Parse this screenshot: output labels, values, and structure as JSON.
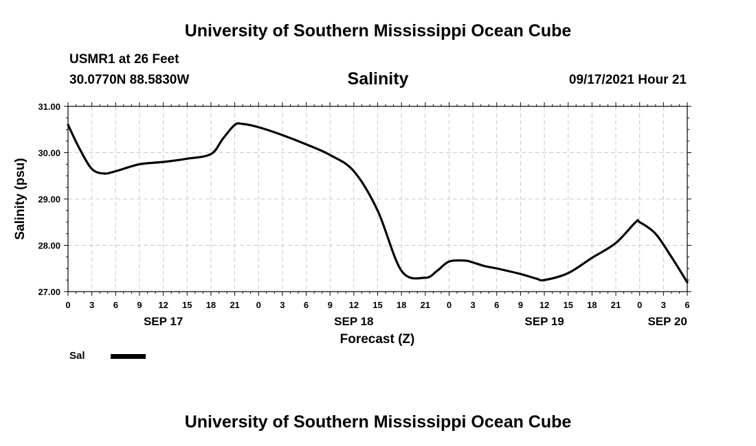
{
  "header": {
    "top_title": "University of Southern Mississippi Ocean Cube",
    "station": "USMR1 at 26 Feet",
    "coords": "30.0770N  88.5830W",
    "variable": "Salinity",
    "datetime": "09/17/2021 Hour 21",
    "bottom_title": "University of Southern Mississippi Ocean Cube"
  },
  "legend": {
    "label": "Sal"
  },
  "chart_data": {
    "type": "line",
    "title": "Salinity",
    "xlabel": "Forecast (Z)",
    "ylabel": "Salinity (psu)",
    "x_unit": "hours from SEP 17 00Z",
    "xlim": [
      0,
      78
    ],
    "ylim": [
      27.0,
      31.0
    ],
    "grid": true,
    "legend_position": "bottom-left",
    "y_ticks": [
      "27.00",
      "28.00",
      "29.00",
      "30.00",
      "31.00"
    ],
    "y_tick_values": [
      27,
      28,
      29,
      30,
      31
    ],
    "x_tick_labels": [
      "0",
      "3",
      "6",
      "9",
      "12",
      "15",
      "18",
      "21",
      "0",
      "3",
      "6",
      "9",
      "12",
      "15",
      "18",
      "21",
      "0",
      "3",
      "6",
      "9",
      "12",
      "15",
      "18",
      "21",
      "0",
      "3",
      "6"
    ],
    "date_labels": [
      {
        "label": "SEP 17",
        "hour": 12
      },
      {
        "label": "SEP 18",
        "hour": 36
      },
      {
        "label": "SEP 19",
        "hour": 60
      },
      {
        "label": "SEP 20",
        "hour": 75.5
      }
    ],
    "series": [
      {
        "name": "Sal",
        "color": "#000000",
        "x": [
          0,
          1.5,
          3,
          4.5,
          6,
          9,
          12,
          15,
          18,
          19.5,
          21,
          22,
          24,
          27,
          30,
          33,
          36,
          39,
          42,
          45,
          46.5,
          48,
          50,
          51,
          52.5,
          54,
          57,
          59,
          60,
          63,
          66,
          69,
          71.5,
          72,
          74,
          76,
          78
        ],
        "values": [
          30.6,
          30.07,
          29.65,
          29.55,
          29.6,
          29.75,
          29.8,
          29.87,
          29.97,
          30.3,
          30.6,
          30.62,
          30.55,
          30.38,
          30.18,
          29.95,
          29.6,
          28.75,
          27.45,
          27.3,
          27.45,
          27.65,
          27.67,
          27.63,
          27.55,
          27.5,
          27.38,
          27.28,
          27.25,
          27.4,
          27.73,
          28.05,
          28.5,
          28.5,
          28.25,
          27.75,
          27.2
        ]
      }
    ]
  }
}
